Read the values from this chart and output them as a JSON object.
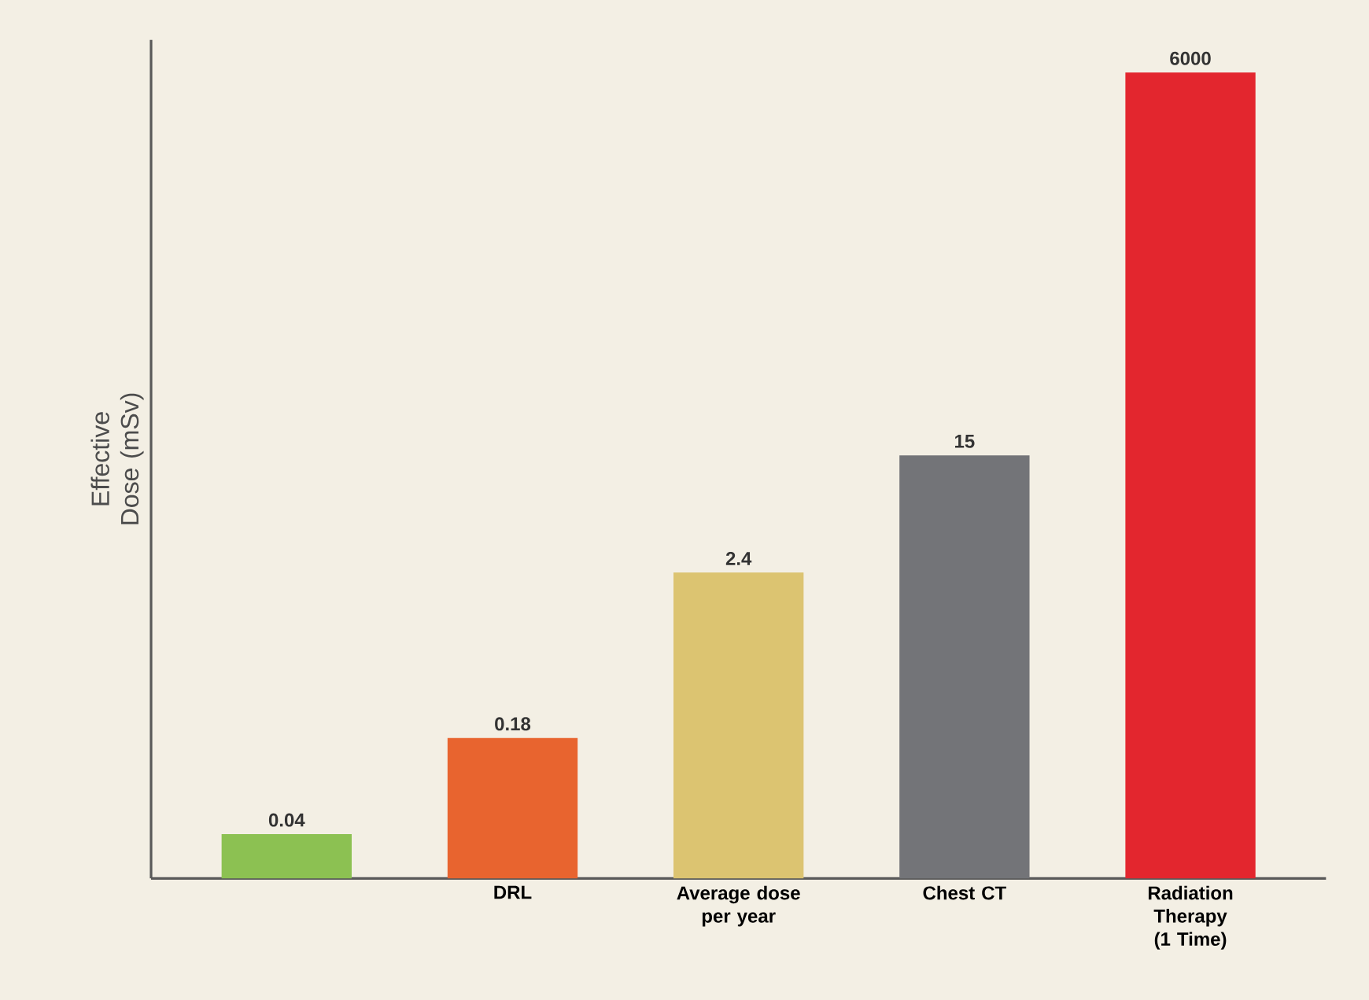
{
  "chart_data": {
    "type": "bar",
    "ylabel": "Effective Dose (mSv)",
    "categories": [
      null,
      "DRL",
      "Average dose per year",
      "Chest CT",
      "Radiation Therapy (1 Time)"
    ],
    "values": [
      0.04,
      0.18,
      2.4,
      15,
      6000
    ],
    "colors": [
      "#8cc152",
      "#e8642f",
      "#dcc471",
      "#737478",
      "#e3262e"
    ],
    "value_labels": [
      "0.04",
      "0.18",
      "2.4",
      "15",
      "6000"
    ],
    "log": true,
    "ylim": [
      0.02,
      10000
    ],
    "tick_labels": "x",
    "grid": false
  }
}
